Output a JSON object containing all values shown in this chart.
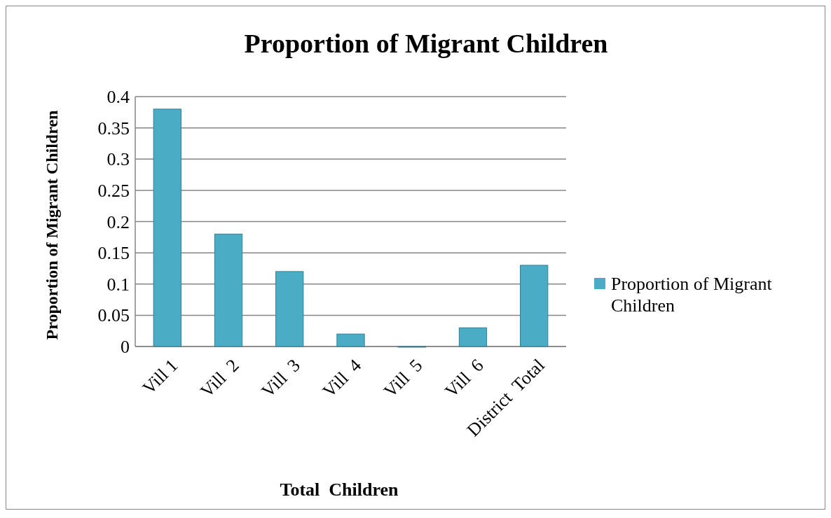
{
  "chart_data": {
    "type": "bar",
    "title": "Proportion of Migrant Children",
    "xlabel": "Total  Children",
    "ylabel": "Proportion of Migrant Children",
    "categories": [
      "Vill 1",
      "Vill  2",
      "Vill  3",
      "Vill  4",
      "Vill  5",
      "Vill  6",
      "District  Total"
    ],
    "series": [
      {
        "name": "Proportion of Migrant Children",
        "color": "#4bacc6",
        "values": [
          0.38,
          0.18,
          0.12,
          0.02,
          0,
          0.03,
          0.13
        ]
      }
    ],
    "ylim": [
      0,
      0.4
    ],
    "yticks": [
      0,
      0.05,
      0.1,
      0.15,
      0.2,
      0.25,
      0.3,
      0.35,
      0.4
    ],
    "grid": "y",
    "legend": "right"
  }
}
